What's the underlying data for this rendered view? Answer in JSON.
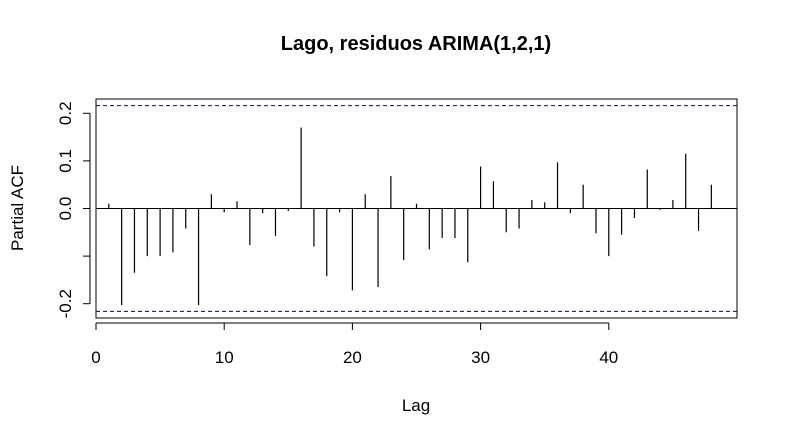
{
  "chart_data": {
    "type": "bar",
    "title": "Lago, residuos ARIMA(1,2,1)",
    "xlabel": "Lag",
    "ylabel": "Partial ACF",
    "x": [
      1,
      2,
      3,
      4,
      5,
      6,
      7,
      8,
      9,
      10,
      11,
      12,
      13,
      14,
      15,
      16,
      17,
      18,
      19,
      20,
      21,
      22,
      23,
      24,
      25,
      26,
      27,
      28,
      29,
      30,
      31,
      32,
      33,
      34,
      35,
      36,
      37,
      38,
      39,
      40,
      41,
      42,
      43,
      44,
      45,
      46,
      47,
      48
    ],
    "values": [
      0.01,
      -0.203,
      -0.135,
      -0.1,
      -0.1,
      -0.092,
      -0.042,
      -0.203,
      0.03,
      -0.008,
      0.015,
      -0.077,
      -0.01,
      -0.058,
      -0.005,
      0.17,
      -0.08,
      -0.142,
      -0.008,
      -0.172,
      0.03,
      -0.165,
      0.068,
      -0.108,
      0.01,
      -0.086,
      -0.062,
      -0.062,
      -0.113,
      0.088,
      0.057,
      -0.05,
      -0.042,
      0.018,
      0.013,
      0.097,
      -0.01,
      0.05,
      -0.052,
      -0.1,
      -0.055,
      -0.02,
      0.082,
      -0.003,
      0.018,
      0.115,
      -0.047,
      0.05
    ],
    "ci": 0.216,
    "xlim": [
      0,
      50
    ],
    "ylim": [
      -0.23,
      0.23
    ],
    "xticks": [
      0,
      10,
      20,
      30,
      40
    ],
    "yticks": [
      -0.2,
      -0.1,
      0.0,
      0.1,
      0.2
    ],
    "ytick_labels": [
      "-0.2",
      "",
      "0.0",
      "0.1",
      "0.2"
    ],
    "colors": {
      "bars": "#000000",
      "ci_line": "#00008b",
      "zero_line": "#000000",
      "box": "#000000"
    }
  }
}
